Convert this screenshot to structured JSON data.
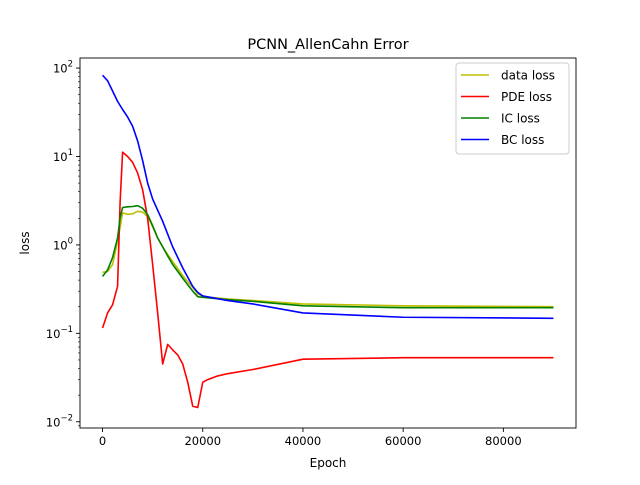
{
  "chart_data": {
    "type": "line",
    "title": "PCNN_AllenCahn Error",
    "xlabel": "Epoch",
    "ylabel": "loss",
    "xscale": "linear",
    "yscale": "log",
    "xlim": [
      -4500,
      94500
    ],
    "ylim": [
      0.0085,
      130
    ],
    "xticks": [
      0,
      20000,
      40000,
      60000,
      80000
    ],
    "xtick_labels": [
      "0",
      "20000",
      "40000",
      "60000",
      "80000"
    ],
    "yticks": [
      0.01,
      0.1,
      1,
      10,
      100
    ],
    "ytick_labels": [
      {
        "base": "10",
        "exp": "−2"
      },
      {
        "base": "10",
        "exp": "−1"
      },
      {
        "base": "10",
        "exp": "0"
      },
      {
        "base": "10",
        "exp": "1"
      },
      {
        "base": "10",
        "exp": "2"
      }
    ],
    "grid": false,
    "legend_position": "top-right",
    "series": [
      {
        "name": "data loss",
        "color": "#bfbf00",
        "x": [
          0,
          1000,
          2000,
          3000,
          4000,
          5000,
          6000,
          7000,
          8000,
          9000,
          10000,
          11000,
          12000,
          13000,
          14000,
          16000,
          18000,
          19000,
          20000,
          25000,
          30000,
          40000,
          60000,
          90000
        ],
        "y": [
          0.49,
          0.5,
          0.6,
          1.1,
          2.3,
          2.22,
          2.25,
          2.4,
          2.35,
          2.1,
          1.6,
          1.2,
          0.95,
          0.78,
          0.65,
          0.45,
          0.33,
          0.28,
          0.26,
          0.245,
          0.235,
          0.215,
          0.205,
          0.2
        ]
      },
      {
        "name": "PDE loss",
        "color": "#ff0000",
        "x": [
          0,
          1000,
          2000,
          3000,
          3500,
          4000,
          5000,
          6000,
          7000,
          8000,
          9000,
          10000,
          11000,
          12000,
          13000,
          14000,
          15000,
          16000,
          17000,
          18000,
          19000,
          20000,
          21000,
          23000,
          25000,
          30000,
          40000,
          60000,
          90000
        ],
        "y": [
          0.115,
          0.17,
          0.21,
          0.34,
          3.0,
          11.2,
          10.0,
          8.6,
          6.5,
          4.2,
          2.0,
          0.6,
          0.17,
          0.045,
          0.075,
          0.065,
          0.057,
          0.045,
          0.028,
          0.015,
          0.0145,
          0.028,
          0.03,
          0.033,
          0.035,
          0.039,
          0.051,
          0.053,
          0.053
        ]
      },
      {
        "name": "IC loss",
        "color": "#008000",
        "x": [
          0,
          1000,
          2000,
          3000,
          3500,
          4000,
          5000,
          6000,
          7000,
          8000,
          9000,
          10000,
          11000,
          12000,
          13000,
          14000,
          16000,
          18000,
          19000,
          20000,
          25000,
          30000,
          40000,
          60000,
          90000
        ],
        "y": [
          0.44,
          0.52,
          0.72,
          1.2,
          2.0,
          2.65,
          2.7,
          2.72,
          2.78,
          2.6,
          2.2,
          1.65,
          1.2,
          0.95,
          0.75,
          0.6,
          0.42,
          0.3,
          0.26,
          0.255,
          0.24,
          0.23,
          0.205,
          0.195,
          0.195
        ]
      },
      {
        "name": "BC loss",
        "color": "#0000ff",
        "x": [
          0,
          1000,
          2000,
          3000,
          4000,
          5000,
          6000,
          7000,
          8000,
          9000,
          10000,
          12000,
          14000,
          16000,
          18000,
          19000,
          20000,
          25000,
          30000,
          40000,
          60000,
          90000
        ],
        "y": [
          83,
          72,
          55,
          42,
          34,
          28,
          22,
          15,
          9,
          5,
          3.3,
          1.85,
          0.95,
          0.55,
          0.34,
          0.29,
          0.265,
          0.235,
          0.215,
          0.17,
          0.152,
          0.148
        ]
      }
    ]
  }
}
